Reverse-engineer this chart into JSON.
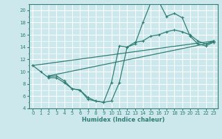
{
  "xlabel": "Humidex (Indice chaleur)",
  "xlim": [
    -0.5,
    23.5
  ],
  "ylim": [
    4,
    21
  ],
  "xticks": [
    0,
    1,
    2,
    3,
    4,
    5,
    6,
    7,
    8,
    9,
    10,
    11,
    12,
    13,
    14,
    15,
    16,
    17,
    18,
    19,
    20,
    21,
    22,
    23
  ],
  "yticks": [
    4,
    6,
    8,
    10,
    12,
    14,
    16,
    18,
    20
  ],
  "bg_color": "#cce8ec",
  "line_color": "#2e7d72",
  "grid_major_color": "#b0d4d8",
  "grid_minor_color": "#daeef0",
  "line1_x": [
    0,
    1,
    2,
    3,
    4,
    5,
    6,
    7,
    8,
    9,
    10,
    11,
    12,
    13,
    14,
    15,
    16,
    17,
    18,
    19,
    20,
    21,
    22,
    23
  ],
  "line1_y": [
    11,
    10,
    9.0,
    9.0,
    8.2,
    7.2,
    7.0,
    5.8,
    5.2,
    5.0,
    5.2,
    8.2,
    14.0,
    14.5,
    18.0,
    21.2,
    21.5,
    19.0,
    19.5,
    18.8,
    15.8,
    14.5,
    14.2,
    14.8
  ],
  "line2_x": [
    2,
    3,
    4,
    5,
    6,
    7,
    8,
    9,
    10,
    11,
    12,
    13,
    14,
    15,
    16,
    17,
    18,
    19,
    20,
    21,
    22,
    23
  ],
  "line2_y": [
    9.2,
    9.3,
    8.5,
    7.2,
    7.0,
    5.5,
    5.2,
    5.0,
    8.2,
    14.2,
    14.0,
    14.8,
    15.0,
    15.8,
    16.0,
    16.5,
    16.8,
    16.5,
    16.0,
    15.0,
    14.5,
    15.0
  ],
  "line3_x": [
    0,
    23
  ],
  "line3_y": [
    11.0,
    15.0
  ],
  "line4_x": [
    2,
    23
  ],
  "line4_y": [
    9.3,
    14.8
  ]
}
